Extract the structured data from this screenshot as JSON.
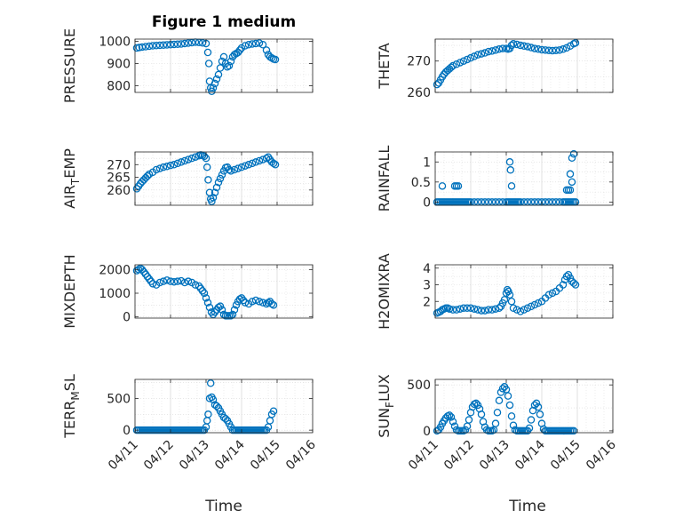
{
  "figure": {
    "title": "Figure 1 medium",
    "xlabel": "Time"
  },
  "colors": {
    "marker": "#0072BD",
    "grid": "#d9d9d9",
    "axis": "#262626"
  },
  "chart_data": [
    {
      "type": "scatter",
      "ylabel": "PRESSURE",
      "ylabel_sub": "",
      "ylabel_after": "",
      "xlim": [
        0,
        5
      ],
      "ylim": [
        770,
        1010
      ],
      "yticks": [
        800,
        900,
        1000
      ],
      "xticks": [
        "04/11",
        "04/12",
        "04/13",
        "04/14",
        "04/15",
        "04/16"
      ],
      "show_xticklabels": false,
      "grid": true,
      "x": [
        0.05,
        0.12,
        0.2,
        0.3,
        0.4,
        0.5,
        0.6,
        0.7,
        0.8,
        0.9,
        1.0,
        1.1,
        1.2,
        1.3,
        1.4,
        1.5,
        1.6,
        1.7,
        1.8,
        1.9,
        2.0,
        2.05,
        2.08,
        2.1,
        2.13,
        2.16,
        2.2,
        2.25,
        2.3,
        2.35,
        2.4,
        2.45,
        2.5,
        2.55,
        2.6,
        2.65,
        2.7,
        2.75,
        2.8,
        2.85,
        2.9,
        2.95,
        3.0,
        3.1,
        3.2,
        3.3,
        3.4,
        3.5,
        3.6,
        3.7,
        3.75,
        3.8,
        3.85,
        3.9,
        3.95
      ],
      "y": [
        970,
        972,
        974,
        976,
        978,
        980,
        981,
        982,
        983,
        984,
        985,
        986,
        987,
        988,
        990,
        992,
        994,
        996,
        995,
        993,
        990,
        950,
        900,
        820,
        790,
        775,
        790,
        810,
        830,
        850,
        880,
        910,
        930,
        900,
        885,
        890,
        910,
        930,
        940,
        945,
        950,
        960,
        970,
        980,
        985,
        988,
        990,
        992,
        985,
        960,
        940,
        930,
        925,
        920,
        918
      ]
    },
    {
      "type": "scatter",
      "ylabel": "THETA",
      "ylabel_sub": "",
      "ylabel_after": "",
      "xlim": [
        0,
        5
      ],
      "ylim": [
        260,
        277
      ],
      "yticks": [
        260,
        270
      ],
      "xticks": [
        "04/11",
        "04/12",
        "04/13",
        "04/14",
        "04/15",
        "04/16"
      ],
      "show_xticklabels": false,
      "grid": true,
      "x": [
        0.05,
        0.1,
        0.15,
        0.2,
        0.25,
        0.3,
        0.35,
        0.4,
        0.45,
        0.5,
        0.6,
        0.7,
        0.8,
        0.9,
        1.0,
        1.1,
        1.2,
        1.3,
        1.4,
        1.5,
        1.6,
        1.7,
        1.8,
        1.9,
        2.0,
        2.05,
        2.1,
        2.15,
        2.2,
        2.3,
        2.4,
        2.5,
        2.6,
        2.7,
        2.8,
        2.9,
        3.0,
        3.1,
        3.2,
        3.3,
        3.4,
        3.5,
        3.6,
        3.7,
        3.8,
        3.9,
        3.95
      ],
      "y": [
        262.5,
        263,
        264,
        265,
        265.8,
        266.5,
        267,
        267.5,
        268,
        268.5,
        269,
        269.5,
        270,
        270.5,
        271,
        271.5,
        272,
        272.3,
        272.6,
        273,
        273.2,
        273.5,
        273.8,
        274,
        274,
        273.8,
        274,
        275,
        275.5,
        275.3,
        275,
        274.8,
        274.6,
        274.3,
        274,
        273.8,
        273.6,
        273.5,
        273.4,
        273.3,
        273.4,
        273.5,
        273.8,
        274.2,
        274.8,
        275.5,
        275.8
      ]
    },
    {
      "type": "scatter",
      "ylabel": "AIR",
      "ylabel_sub": "T",
      "ylabel_after": "EMP",
      "xlim": [
        0,
        5
      ],
      "ylim": [
        254,
        275
      ],
      "yticks": [
        260,
        265,
        270
      ],
      "xticks": [
        "04/11",
        "04/12",
        "04/13",
        "04/14",
        "04/15",
        "04/16"
      ],
      "show_xticklabels": false,
      "grid": true,
      "x": [
        0.05,
        0.1,
        0.15,
        0.2,
        0.25,
        0.3,
        0.35,
        0.4,
        0.5,
        0.6,
        0.7,
        0.8,
        0.9,
        1.0,
        1.1,
        1.2,
        1.3,
        1.4,
        1.5,
        1.6,
        1.7,
        1.8,
        1.85,
        1.9,
        1.95,
        2.0,
        2.03,
        2.06,
        2.1,
        2.13,
        2.16,
        2.2,
        2.25,
        2.3,
        2.35,
        2.4,
        2.45,
        2.5,
        2.55,
        2.6,
        2.65,
        2.7,
        2.8,
        2.9,
        3.0,
        3.1,
        3.2,
        3.3,
        3.4,
        3.5,
        3.6,
        3.7,
        3.75,
        3.8,
        3.85,
        3.9,
        3.95
      ],
      "y": [
        260.5,
        261.5,
        262.5,
        263.3,
        264,
        264.8,
        265.5,
        266.2,
        267,
        268,
        268.5,
        269,
        269.3,
        269.7,
        270,
        270.5,
        271,
        271.5,
        272,
        272.5,
        273,
        273.5,
        273.8,
        273.6,
        273.3,
        272.5,
        269,
        264,
        259,
        256.5,
        255.5,
        257,
        259,
        261,
        263,
        264.5,
        266,
        267.5,
        268.8,
        269,
        268,
        267.5,
        268,
        268.5,
        269,
        269.5,
        270,
        270.5,
        271,
        271.5,
        272,
        272.5,
        273,
        272,
        271,
        270.5,
        270
      ]
    },
    {
      "type": "scatter",
      "ylabel": "RAINFALL",
      "ylabel_sub": "",
      "ylabel_after": "",
      "xlim": [
        0,
        5
      ],
      "ylim": [
        -0.08,
        1.25
      ],
      "yticks": [
        0,
        0.5,
        1
      ],
      "xticks": [
        "04/11",
        "04/12",
        "04/13",
        "04/14",
        "04/15",
        "04/16"
      ],
      "show_xticklabels": false,
      "grid": true,
      "x": [
        0.05,
        0.1,
        0.15,
        0.2,
        0.25,
        0.3,
        0.35,
        0.4,
        0.45,
        0.5,
        0.55,
        0.6,
        0.65,
        0.7,
        0.75,
        0.8,
        0.85,
        0.9,
        0.95,
        1.0,
        1.1,
        1.2,
        1.3,
        1.4,
        1.5,
        1.6,
        1.7,
        1.8,
        1.9,
        2.0,
        2.05,
        2.1,
        2.15,
        2.2,
        2.25,
        2.3,
        2.35,
        2.4,
        2.5,
        2.6,
        2.7,
        2.8,
        2.9,
        3.0,
        3.1,
        3.2,
        3.3,
        3.4,
        3.5,
        3.6,
        3.65,
        3.7,
        3.75,
        3.8,
        3.85,
        3.9,
        3.95,
        0.2,
        0.55,
        0.6,
        0.65,
        2.1,
        2.12,
        2.15,
        3.8,
        3.85,
        3.9,
        3.7,
        3.75,
        3.8,
        3.85
      ],
      "y": [
        0,
        0,
        0,
        0,
        0,
        0,
        0,
        0,
        0,
        0,
        0,
        0,
        0,
        0,
        0,
        0,
        0,
        0,
        0,
        0,
        0,
        0,
        0,
        0,
        0,
        0,
        0,
        0,
        0,
        0,
        0,
        0,
        0,
        0,
        0,
        0,
        0,
        0,
        0,
        0,
        0,
        0,
        0,
        0,
        0,
        0,
        0,
        0,
        0,
        0,
        0,
        0,
        0,
        0,
        0,
        0,
        0,
        0.4,
        0.4,
        0.4,
        0.4,
        1.0,
        0.8,
        0.4,
        0.7,
        1.1,
        1.2,
        0.3,
        0.3,
        0.3,
        0.5
      ]
    },
    {
      "type": "scatter",
      "ylabel": "MIXDEPTH",
      "ylabel_sub": "",
      "ylabel_after": "",
      "xlim": [
        0,
        5
      ],
      "ylim": [
        -50,
        2200
      ],
      "yticks": [
        0,
        1000,
        2000
      ],
      "xticks": [
        "04/11",
        "04/12",
        "04/13",
        "04/14",
        "04/15",
        "04/16"
      ],
      "show_xticklabels": false,
      "grid": true,
      "x": [
        0.05,
        0.1,
        0.15,
        0.2,
        0.25,
        0.3,
        0.35,
        0.4,
        0.45,
        0.5,
        0.6,
        0.7,
        0.8,
        0.9,
        1.0,
        1.1,
        1.2,
        1.3,
        1.4,
        1.5,
        1.6,
        1.7,
        1.8,
        1.85,
        1.9,
        1.95,
        2.0,
        2.05,
        2.1,
        2.15,
        2.2,
        2.25,
        2.3,
        2.35,
        2.4,
        2.45,
        2.5,
        2.55,
        2.6,
        2.65,
        2.7,
        2.75,
        2.8,
        2.85,
        2.9,
        2.95,
        3.0,
        3.05,
        3.1,
        3.2,
        3.3,
        3.4,
        3.5,
        3.6,
        3.7,
        3.75,
        3.8,
        3.85,
        3.9
      ],
      "y": [
        1950,
        2000,
        2050,
        2000,
        1900,
        1800,
        1700,
        1600,
        1500,
        1400,
        1350,
        1450,
        1500,
        1550,
        1500,
        1480,
        1500,
        1520,
        1450,
        1500,
        1450,
        1350,
        1300,
        1200,
        1100,
        1000,
        800,
        600,
        400,
        200,
        100,
        200,
        300,
        400,
        450,
        300,
        100,
        50,
        50,
        50,
        50,
        100,
        300,
        500,
        650,
        750,
        800,
        700,
        600,
        550,
        650,
        700,
        650,
        600,
        550,
        600,
        650,
        550,
        500
      ]
    },
    {
      "type": "scatter",
      "ylabel": "H2OMIXRA",
      "ylabel_sub": "",
      "ylabel_after": "",
      "xlim": [
        0,
        5
      ],
      "ylim": [
        1.0,
        4.2
      ],
      "yticks": [
        2,
        3,
        4
      ],
      "xticks": [
        "04/11",
        "04/12",
        "04/13",
        "04/14",
        "04/15",
        "04/16"
      ],
      "show_xticklabels": false,
      "grid": true,
      "x": [
        0.05,
        0.1,
        0.15,
        0.2,
        0.25,
        0.3,
        0.35,
        0.4,
        0.5,
        0.6,
        0.7,
        0.8,
        0.9,
        1.0,
        1.1,
        1.2,
        1.3,
        1.4,
        1.5,
        1.6,
        1.7,
        1.8,
        1.85,
        1.9,
        1.95,
        2.0,
        2.03,
        2.06,
        2.1,
        2.15,
        2.2,
        2.3,
        2.4,
        2.5,
        2.6,
        2.7,
        2.8,
        2.9,
        3.0,
        3.1,
        3.2,
        3.3,
        3.4,
        3.5,
        3.6,
        3.65,
        3.7,
        3.75,
        3.8,
        3.85,
        3.9,
        3.95
      ],
      "y": [
        1.3,
        1.35,
        1.4,
        1.5,
        1.55,
        1.6,
        1.6,
        1.55,
        1.5,
        1.5,
        1.55,
        1.6,
        1.6,
        1.6,
        1.55,
        1.5,
        1.45,
        1.45,
        1.5,
        1.5,
        1.55,
        1.6,
        1.7,
        1.9,
        2.1,
        2.5,
        2.7,
        2.6,
        2.4,
        2.0,
        1.6,
        1.5,
        1.4,
        1.5,
        1.6,
        1.7,
        1.8,
        1.9,
        2.0,
        2.2,
        2.4,
        2.5,
        2.6,
        2.8,
        3.0,
        3.3,
        3.5,
        3.6,
        3.4,
        3.2,
        3.1,
        3.0
      ]
    },
    {
      "type": "scatter",
      "ylabel": "TERR",
      "ylabel_sub": "M",
      "ylabel_after": "SL",
      "xlim": [
        0,
        5
      ],
      "ylim": [
        -40,
        800
      ],
      "yticks": [
        0,
        500
      ],
      "xticks": [
        "04/11",
        "04/12",
        "04/13",
        "04/14",
        "04/15",
        "04/16"
      ],
      "show_xticklabels": true,
      "grid": true,
      "x": [
        0.05,
        0.1,
        0.15,
        0.2,
        0.25,
        0.3,
        0.35,
        0.4,
        0.45,
        0.5,
        0.55,
        0.6,
        0.65,
        0.7,
        0.75,
        0.8,
        0.85,
        0.9,
        0.95,
        1.0,
        1.05,
        1.1,
        1.15,
        1.2,
        1.25,
        1.3,
        1.35,
        1.4,
        1.45,
        1.5,
        1.55,
        1.6,
        1.65,
        1.7,
        1.75,
        1.8,
        1.85,
        1.9,
        1.95,
        2.0,
        2.03,
        2.06,
        2.1,
        2.13,
        2.16,
        2.2,
        2.25,
        2.3,
        2.35,
        2.4,
        2.45,
        2.5,
        2.55,
        2.6,
        2.65,
        2.7,
        2.75,
        2.8,
        2.85,
        2.9,
        2.95,
        3.0,
        3.05,
        3.1,
        3.15,
        3.2,
        3.25,
        3.3,
        3.35,
        3.4,
        3.45,
        3.5,
        3.55,
        3.6,
        3.65,
        3.7,
        3.75,
        3.8,
        3.85,
        3.9
      ],
      "y": [
        0,
        0,
        0,
        0,
        0,
        0,
        0,
        0,
        0,
        0,
        0,
        0,
        0,
        0,
        0,
        0,
        0,
        0,
        0,
        0,
        0,
        0,
        0,
        0,
        0,
        0,
        0,
        0,
        0,
        0,
        0,
        0,
        0,
        0,
        0,
        0,
        0,
        0,
        0,
        50,
        150,
        250,
        500,
        740,
        520,
        480,
        400,
        380,
        350,
        300,
        250,
        200,
        180,
        150,
        100,
        50,
        0,
        0,
        0,
        0,
        0,
        0,
        0,
        0,
        0,
        0,
        0,
        0,
        0,
        0,
        0,
        0,
        0,
        0,
        0,
        0,
        50,
        150,
        250,
        300
      ]
    },
    {
      "type": "scatter",
      "ylabel": "SUN",
      "ylabel_sub": "F",
      "ylabel_after": "LUX",
      "xlim": [
        0,
        5
      ],
      "ylim": [
        -20,
        560
      ],
      "yticks": [
        0,
        500
      ],
      "xticks": [
        "04/11",
        "04/12",
        "04/13",
        "04/14",
        "04/15",
        "04/16"
      ],
      "show_xticklabels": true,
      "grid": true,
      "x": [
        0.05,
        0.1,
        0.15,
        0.2,
        0.25,
        0.3,
        0.35,
        0.4,
        0.45,
        0.5,
        0.55,
        0.6,
        0.65,
        0.7,
        0.75,
        0.8,
        0.85,
        0.9,
        0.95,
        1.0,
        1.05,
        1.1,
        1.15,
        1.2,
        1.25,
        1.3,
        1.35,
        1.4,
        1.45,
        1.5,
        1.55,
        1.6,
        1.65,
        1.7,
        1.75,
        1.8,
        1.85,
        1.9,
        1.95,
        2.0,
        2.05,
        2.1,
        2.15,
        2.2,
        2.25,
        2.3,
        2.35,
        2.4,
        2.45,
        2.5,
        2.55,
        2.6,
        2.65,
        2.7,
        2.75,
        2.8,
        2.85,
        2.9,
        2.95,
        3.0,
        3.05,
        3.1,
        3.15,
        3.2,
        3.25,
        3.3,
        3.35,
        3.4,
        3.45,
        3.5,
        3.55,
        3.6,
        3.65,
        3.7,
        3.75,
        3.8,
        3.85,
        3.9
      ],
      "y": [
        0,
        10,
        40,
        80,
        110,
        140,
        160,
        170,
        150,
        100,
        50,
        10,
        0,
        0,
        0,
        0,
        10,
        50,
        120,
        200,
        260,
        290,
        300,
        280,
        240,
        180,
        100,
        40,
        10,
        0,
        0,
        0,
        10,
        80,
        200,
        330,
        420,
        460,
        480,
        450,
        380,
        280,
        160,
        60,
        10,
        0,
        0,
        0,
        0,
        0,
        0,
        0,
        30,
        120,
        220,
        280,
        300,
        260,
        180,
        80,
        20,
        0,
        0,
        0,
        0,
        0,
        0,
        0,
        0,
        0,
        0,
        0,
        0,
        0,
        0,
        0,
        0,
        0
      ]
    }
  ]
}
